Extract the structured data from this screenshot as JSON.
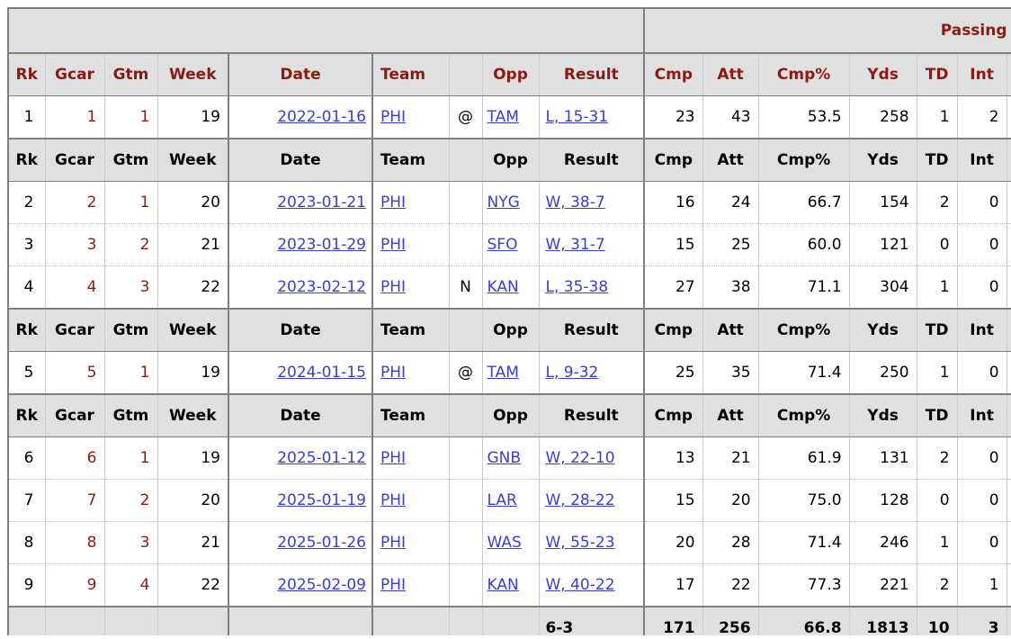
{
  "passing_group_label": "Passing",
  "columns": {
    "rk": "Rk",
    "gcar": "Gcar",
    "gtm": "Gtm",
    "week": "Week",
    "date": "Date",
    "team": "Team",
    "loc": "",
    "opp": "Opp",
    "result": "Result",
    "cmp": "Cmp",
    "att": "Att",
    "cmp_pct": "Cmp%",
    "yds": "Yds",
    "td": "TD",
    "int": "Int"
  },
  "sections": [
    {
      "rows": [
        {
          "rk": "1",
          "gcar": "1",
          "gtm": "1",
          "week": "19",
          "date": "2022-01-16",
          "team": "PHI",
          "loc": "@",
          "opp": "TAM",
          "result": "L, 15-31",
          "cmp": "23",
          "att": "43",
          "cmp_pct": "53.5",
          "yds": "258",
          "td": "1",
          "int": "2"
        }
      ]
    },
    {
      "rows": [
        {
          "rk": "2",
          "gcar": "2",
          "gtm": "1",
          "week": "20",
          "date": "2023-01-21",
          "team": "PHI",
          "loc": "",
          "opp": "NYG",
          "result": "W, 38-7",
          "cmp": "16",
          "att": "24",
          "cmp_pct": "66.7",
          "yds": "154",
          "td": "2",
          "int": "0"
        },
        {
          "rk": "3",
          "gcar": "3",
          "gtm": "2",
          "week": "21",
          "date": "2023-01-29",
          "team": "PHI",
          "loc": "",
          "opp": "SFO",
          "result": "W, 31-7",
          "cmp": "15",
          "att": "25",
          "cmp_pct": "60.0",
          "yds": "121",
          "td": "0",
          "int": "0"
        },
        {
          "rk": "4",
          "gcar": "4",
          "gtm": "3",
          "week": "22",
          "date": "2023-02-12",
          "team": "PHI",
          "loc": "N",
          "opp": "KAN",
          "result": "L, 35-38",
          "cmp": "27",
          "att": "38",
          "cmp_pct": "71.1",
          "yds": "304",
          "td": "1",
          "int": "0"
        }
      ]
    },
    {
      "rows": [
        {
          "rk": "5",
          "gcar": "5",
          "gtm": "1",
          "week": "19",
          "date": "2024-01-15",
          "team": "PHI",
          "loc": "@",
          "opp": "TAM",
          "result": "L, 9-32",
          "cmp": "25",
          "att": "35",
          "cmp_pct": "71.4",
          "yds": "250",
          "td": "1",
          "int": "0"
        }
      ]
    },
    {
      "rows": [
        {
          "rk": "6",
          "gcar": "6",
          "gtm": "1",
          "week": "19",
          "date": "2025-01-12",
          "team": "PHI",
          "loc": "",
          "opp": "GNB",
          "result": "W, 22-10",
          "cmp": "13",
          "att": "21",
          "cmp_pct": "61.9",
          "yds": "131",
          "td": "2",
          "int": "0"
        },
        {
          "rk": "7",
          "gcar": "7",
          "gtm": "2",
          "week": "20",
          "date": "2025-01-19",
          "team": "PHI",
          "loc": "",
          "opp": "LAR",
          "result": "W, 28-22",
          "cmp": "15",
          "att": "20",
          "cmp_pct": "75.0",
          "yds": "128",
          "td": "0",
          "int": "0"
        },
        {
          "rk": "8",
          "gcar": "8",
          "gtm": "3",
          "week": "21",
          "date": "2025-01-26",
          "team": "PHI",
          "loc": "",
          "opp": "WAS",
          "result": "W, 55-23",
          "cmp": "20",
          "att": "28",
          "cmp_pct": "71.4",
          "yds": "246",
          "td": "1",
          "int": "0"
        },
        {
          "rk": "9",
          "gcar": "9",
          "gtm": "4",
          "week": "22",
          "date": "2025-02-09",
          "team": "PHI",
          "loc": "",
          "opp": "KAN",
          "result": "W, 40-22",
          "cmp": "17",
          "att": "22",
          "cmp_pct": "77.3",
          "yds": "221",
          "td": "2",
          "int": "1"
        }
      ]
    }
  ],
  "totals": {
    "result": "6-3",
    "cmp": "171",
    "att": "256",
    "cmp_pct": "66.8",
    "yds": "1813",
    "td": "10",
    "int": "3"
  },
  "colors": {
    "header_text": "#8c1a10",
    "link": "#3a3ed0",
    "header_bg": "#e0e0e0",
    "border_dark": "#7f7f7f",
    "border_light": "#cccccc"
  }
}
